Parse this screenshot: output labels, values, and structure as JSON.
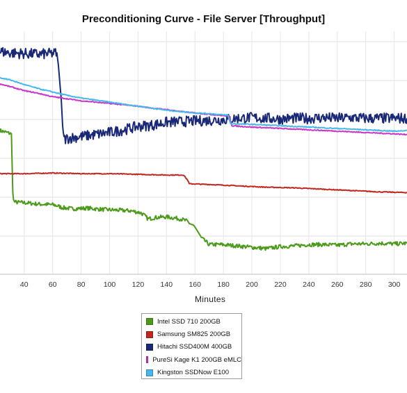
{
  "chart_data": {
    "type": "line",
    "title": "Preconditioning Curve - File Server [Throughput]",
    "xlabel": "Minutes",
    "ylabel": "",
    "xlim": [
      23,
      309
    ],
    "ylim": [
      0,
      360
    ],
    "x_ticks": [
      40,
      60,
      80,
      100,
      120,
      140,
      160,
      180,
      200,
      220,
      240,
      260,
      280,
      300
    ],
    "x_tick_labels": [
      "40",
      "60",
      "80",
      "100",
      "120",
      "140",
      "160",
      "180",
      "200",
      "220",
      "240",
      "260",
      "280",
      "300"
    ],
    "grid": true,
    "legend_position": "bottom-center",
    "series": [
      {
        "name": "Intel SSD 710 200GB",
        "color": "#4c9a1a",
        "points": [
          [
            23,
            213
          ],
          [
            31,
            208
          ],
          [
            32,
            120
          ],
          [
            33,
            107
          ],
          [
            40,
            106
          ],
          [
            50,
            104
          ],
          [
            60,
            103
          ],
          [
            64,
            101
          ],
          [
            66,
            99
          ],
          [
            74,
            97
          ],
          [
            84,
            98
          ],
          [
            95,
            96
          ],
          [
            105,
            95
          ],
          [
            115,
            94
          ],
          [
            122,
            91
          ],
          [
            124,
            88
          ],
          [
            127,
            82
          ],
          [
            132,
            84
          ],
          [
            140,
            85
          ],
          [
            150,
            82
          ],
          [
            154,
            79
          ],
          [
            160,
            70
          ],
          [
            165,
            53
          ],
          [
            170,
            44
          ],
          [
            178,
            44
          ],
          [
            190,
            42
          ],
          [
            200,
            40
          ],
          [
            210,
            38
          ],
          [
            220,
            41
          ],
          [
            230,
            42
          ],
          [
            240,
            44
          ],
          [
            250,
            44
          ],
          [
            260,
            43
          ],
          [
            270,
            45
          ],
          [
            280,
            45
          ],
          [
            290,
            46
          ],
          [
            300,
            45
          ],
          [
            309,
            46
          ]
        ],
        "noise": 3
      },
      {
        "name": "Samsung SM825 200GB",
        "color": "#c0281f",
        "points": [
          [
            23,
            149
          ],
          [
            40,
            149
          ],
          [
            60,
            150
          ],
          [
            80,
            149
          ],
          [
            100,
            149
          ],
          [
            120,
            148
          ],
          [
            140,
            147
          ],
          [
            152,
            147
          ],
          [
            155,
            139
          ],
          [
            156,
            134
          ],
          [
            170,
            133
          ],
          [
            190,
            131
          ],
          [
            210,
            129
          ],
          [
            230,
            128
          ],
          [
            250,
            126
          ],
          [
            270,
            124
          ],
          [
            290,
            122
          ],
          [
            309,
            121
          ]
        ],
        "noise": 0.6
      },
      {
        "name": "Hitachi SSD400M 400GB",
        "color": "#1a2878",
        "points": [
          [
            23,
            330
          ],
          [
            30,
            328
          ],
          [
            40,
            327
          ],
          [
            50,
            326
          ],
          [
            60,
            327
          ],
          [
            63,
            328
          ],
          [
            64,
            310
          ],
          [
            66,
            260
          ],
          [
            67,
            220
          ],
          [
            68,
            200
          ],
          [
            72,
            202
          ],
          [
            80,
            204
          ],
          [
            90,
            207
          ],
          [
            100,
            210
          ],
          [
            110,
            214
          ],
          [
            120,
            219
          ],
          [
            130,
            221
          ],
          [
            140,
            225
          ],
          [
            150,
            226
          ],
          [
            160,
            227
          ],
          [
            170,
            228
          ],
          [
            180,
            229
          ],
          [
            190,
            231
          ],
          [
            200,
            232
          ],
          [
            210,
            231
          ],
          [
            220,
            230
          ],
          [
            230,
            231
          ],
          [
            240,
            231
          ],
          [
            250,
            232
          ],
          [
            260,
            231
          ],
          [
            270,
            232
          ],
          [
            280,
            231
          ],
          [
            290,
            231
          ],
          [
            300,
            231
          ],
          [
            309,
            231
          ]
        ],
        "noise": 8
      },
      {
        "name": "PureSi Kage K1 200GB eMLC",
        "color": "#c838c8",
        "points": [
          [
            23,
            282
          ],
          [
            30,
            278
          ],
          [
            40,
            272
          ],
          [
            50,
            268
          ],
          [
            60,
            263
          ],
          [
            70,
            260
          ],
          [
            80,
            257
          ],
          [
            90,
            255
          ],
          [
            100,
            253
          ],
          [
            110,
            251
          ],
          [
            120,
            249
          ],
          [
            130,
            246
          ],
          [
            140,
            244
          ],
          [
            150,
            241
          ],
          [
            160,
            239
          ],
          [
            170,
            237
          ],
          [
            180,
            235
          ],
          [
            184,
            234
          ],
          [
            186,
            220
          ],
          [
            200,
            218
          ],
          [
            220,
            216
          ],
          [
            240,
            214
          ],
          [
            260,
            212
          ],
          [
            280,
            210
          ],
          [
            300,
            208
          ],
          [
            309,
            207
          ]
        ],
        "noise": 0.7
      },
      {
        "name": "Kingston SSDNow E100",
        "color": "#48b8ec",
        "points": [
          [
            23,
            291
          ],
          [
            30,
            288
          ],
          [
            40,
            281
          ],
          [
            50,
            275
          ],
          [
            60,
            270
          ],
          [
            70,
            265
          ],
          [
            80,
            261
          ],
          [
            90,
            258
          ],
          [
            100,
            255
          ],
          [
            110,
            252
          ],
          [
            120,
            249
          ],
          [
            130,
            246
          ],
          [
            140,
            243
          ],
          [
            150,
            241
          ],
          [
            160,
            239
          ],
          [
            170,
            238
          ],
          [
            180,
            236
          ],
          [
            183,
            236
          ],
          [
            185,
            223
          ],
          [
            200,
            222
          ],
          [
            220,
            220
          ],
          [
            240,
            218
          ],
          [
            260,
            216
          ],
          [
            280,
            214
          ],
          [
            300,
            212
          ],
          [
            309,
            213
          ]
        ],
        "noise": 0.7
      }
    ]
  }
}
